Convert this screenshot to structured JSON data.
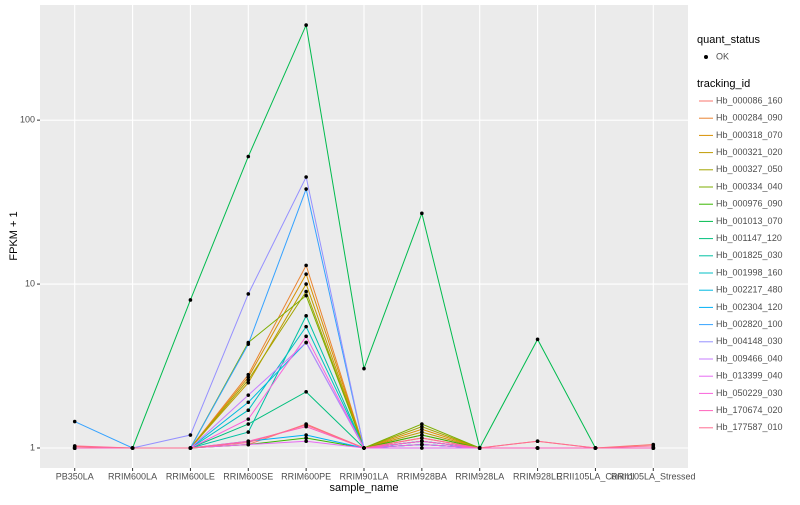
{
  "chart_data": {
    "type": "line",
    "x_label": "sample_name",
    "y_label": "FPKM + 1",
    "categories": [
      "PB350LA",
      "RRIM600LA",
      "RRIM600LE",
      "RRIM600SE",
      "RRIM600PE",
      "RRIM901LA",
      "RRIM928BA",
      "RRIM928LA",
      "RRIM928LE",
      "RRII105LA_Control",
      "RRII105LA_Stressed"
    ],
    "log_y": true,
    "ylim": [
      0.755,
      504
    ],
    "yticks": [
      1,
      10,
      100
    ],
    "grid": true,
    "point_color": "#000000",
    "shape_legend_title": "quant_status",
    "shape_label": "OK",
    "color_legend_title": "tracking_id",
    "legend_position": "right",
    "series": [
      {
        "name": "Hb_000086_160",
        "color": "#F8766D",
        "values": [
          1.02,
          1,
          1,
          1.05,
          1.4,
          1,
          1.2,
          1,
          1.1,
          1,
          1.05
        ]
      },
      {
        "name": "Hb_000284_090",
        "color": "#EA8331",
        "values": [
          1,
          1,
          1,
          2.8,
          13,
          1,
          1.15,
          1,
          1,
          1,
          1
        ]
      },
      {
        "name": "Hb_000318_070",
        "color": "#D89000",
        "values": [
          1,
          1,
          1,
          2.7,
          11.5,
          1,
          1.3,
          1,
          1,
          1,
          1
        ]
      },
      {
        "name": "Hb_000321_020",
        "color": "#C09B00",
        "values": [
          1,
          1,
          1,
          2.5,
          10,
          1,
          1.25,
          1,
          1,
          1,
          1
        ]
      },
      {
        "name": "Hb_000327_050",
        "color": "#A3A500",
        "values": [
          1,
          1,
          1,
          2.6,
          9,
          1,
          1.35,
          1,
          1,
          1,
          1
        ]
      },
      {
        "name": "Hb_000334_040",
        "color": "#7CAE00",
        "values": [
          1,
          1,
          1,
          4.4,
          8.5,
          1,
          1.4,
          1,
          1,
          1,
          1
        ]
      },
      {
        "name": "Hb_000976_090",
        "color": "#39B600",
        "values": [
          1,
          1,
          1,
          1.05,
          1.15,
          1,
          1.2,
          1,
          1,
          1,
          1
        ]
      },
      {
        "name": "Hb_001013_070",
        "color": "#00BB4E",
        "values": [
          1,
          1,
          8,
          60,
          380,
          3.05,
          27,
          1,
          4.6,
          1,
          1
        ]
      },
      {
        "name": "Hb_001147_120",
        "color": "#00BF7D",
        "values": [
          1,
          1,
          1,
          1.4,
          2.2,
          1,
          1.1,
          1,
          1,
          1,
          1
        ]
      },
      {
        "name": "Hb_001825_030",
        "color": "#00C1A3",
        "values": [
          1,
          1,
          1,
          1.25,
          6.4,
          1,
          1.1,
          1,
          1,
          1,
          1
        ]
      },
      {
        "name": "Hb_001998_160",
        "color": "#00BFC4",
        "values": [
          1,
          1,
          1,
          1.7,
          5.5,
          1,
          1.05,
          1,
          1,
          1,
          1
        ]
      },
      {
        "name": "Hb_002217_480",
        "color": "#00BAE0",
        "values": [
          1,
          1,
          1,
          1.9,
          4.4,
          1,
          1.05,
          1,
          1,
          1,
          1
        ]
      },
      {
        "name": "Hb_002304_120",
        "color": "#00B0F6",
        "values": [
          1,
          1,
          1,
          1.1,
          1.2,
          1,
          1.05,
          1,
          1,
          1,
          1
        ]
      },
      {
        "name": "Hb_002820_100",
        "color": "#35A2FF",
        "values": [
          1.45,
          1,
          1,
          4.3,
          38,
          1,
          1.1,
          1,
          1,
          1,
          1
        ]
      },
      {
        "name": "Hb_004148_030",
        "color": "#9590FF",
        "values": [
          1,
          1,
          1.2,
          8.7,
          45,
          1,
          1.1,
          1,
          1,
          1,
          1
        ]
      },
      {
        "name": "Hb_009466_040",
        "color": "#C77CFF",
        "values": [
          1,
          1,
          1,
          2.1,
          4.4,
          1,
          1,
          1,
          1,
          1,
          1
        ]
      },
      {
        "name": "Hb_013399_040",
        "color": "#E76BF3",
        "values": [
          1,
          1,
          1,
          1.05,
          1.1,
          1,
          1,
          1,
          1,
          1,
          1
        ]
      },
      {
        "name": "Hb_050229_030",
        "color": "#FA62DB",
        "values": [
          1,
          1,
          1,
          1.5,
          4.8,
          1,
          1.05,
          1,
          1,
          1,
          1
        ]
      },
      {
        "name": "Hb_170674_020",
        "color": "#FF62BC",
        "values": [
          1,
          1,
          1,
          1.1,
          1.35,
          1,
          1.1,
          1,
          1,
          1,
          1
        ]
      },
      {
        "name": "Hb_177587_010",
        "color": "#FF6C91",
        "values": [
          1.03,
          1,
          1,
          1.08,
          1.38,
          1,
          1.15,
          1,
          1.1,
          1,
          1.03
        ]
      }
    ]
  }
}
